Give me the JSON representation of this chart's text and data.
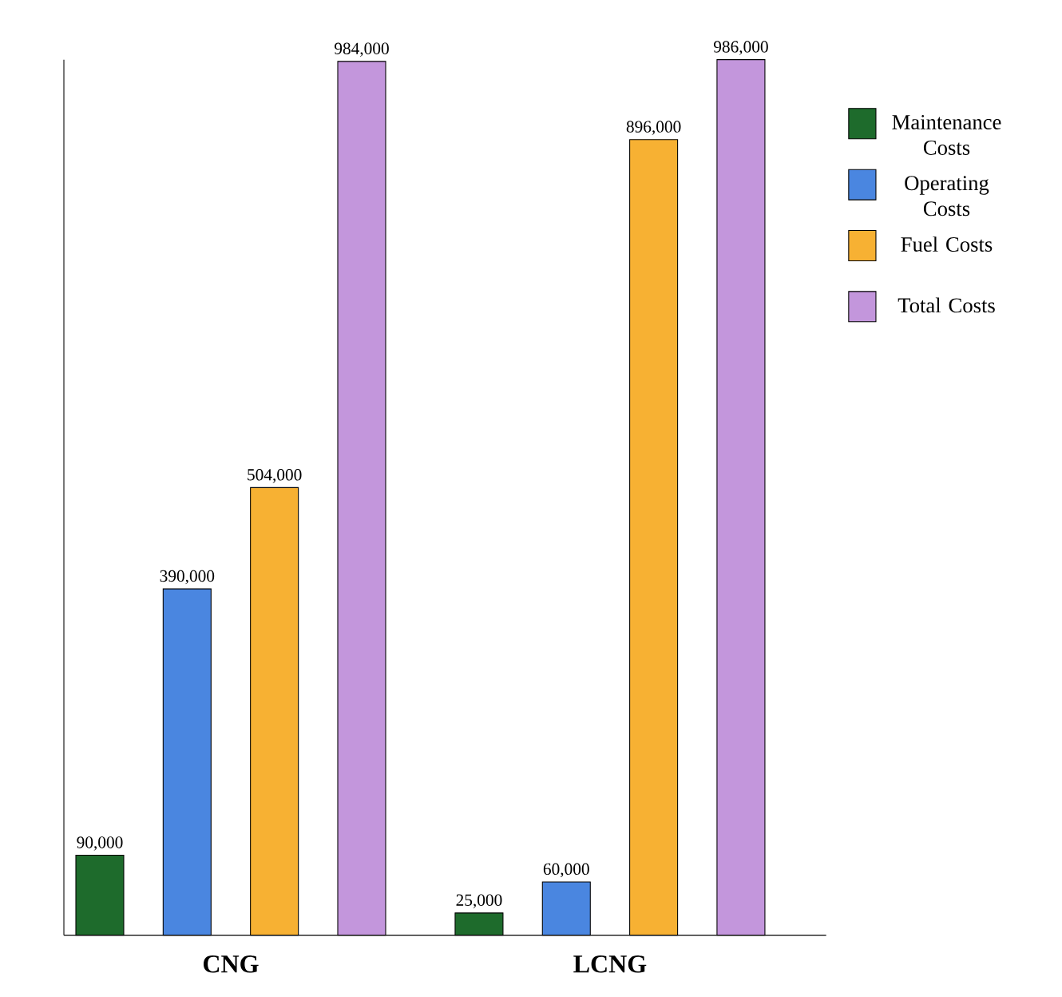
{
  "chart_data": {
    "type": "bar",
    "categories": [
      "CNG",
      "LCNG"
    ],
    "series": [
      {
        "name": "Maintenance Costs",
        "color": "#1e6b2c",
        "values": [
          90000,
          25000
        ],
        "value_labels": [
          "90,000",
          "25,000"
        ]
      },
      {
        "name": "Operating Costs",
        "color": "#4a86e0",
        "values": [
          390000,
          60000
        ],
        "value_labels": [
          "390,000",
          "60,000"
        ]
      },
      {
        "name": "Fuel Costs",
        "color": "#f7b133",
        "values": [
          504000,
          896000
        ],
        "value_labels": [
          "504,000",
          "896,000"
        ]
      },
      {
        "name": "Total Costs",
        "color": "#c396dc",
        "values": [
          984000,
          986000
        ],
        "value_labels": [
          "984,000",
          "986,000"
        ]
      }
    ],
    "legend": "right"
  }
}
